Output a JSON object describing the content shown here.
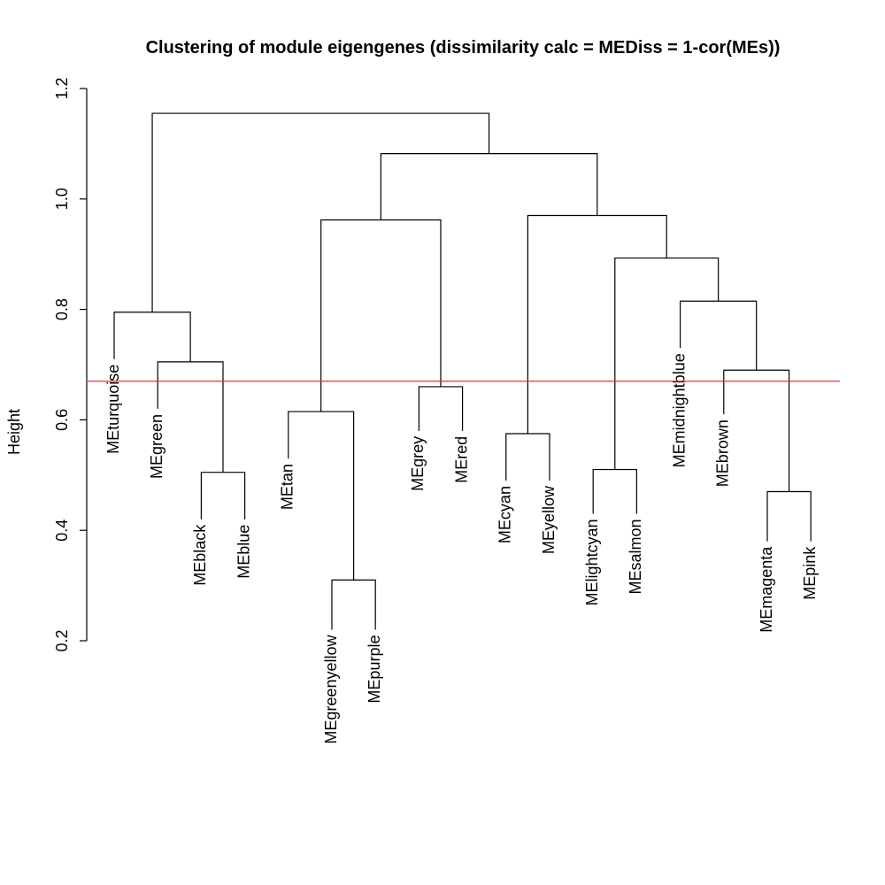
{
  "chart_data": {
    "type": "dendrogram",
    "title": "Clustering of module eigengenes (dissimilarity calc = MEDiss = 1-cor(MEs))",
    "ylabel": "Height",
    "xlabel": "",
    "ylim": [
      0.2,
      1.2
    ],
    "yticks": [
      0.2,
      0.4,
      0.6,
      0.8,
      1.0,
      1.2
    ],
    "ytick_labels": [
      "0.2",
      "0.4",
      "0.6",
      "0.8",
      "1.0",
      "1.2"
    ],
    "cut_height": 0.67,
    "cut_color": "#e8302c",
    "leaves": [
      {
        "id": "turquoise",
        "label": "MEturquoise",
        "height": 0.71
      },
      {
        "id": "green",
        "label": "MEgreen",
        "height": 0.62
      },
      {
        "id": "black",
        "label": "MEblack",
        "height": 0.42
      },
      {
        "id": "blue",
        "label": "MEblue",
        "height": 0.42
      },
      {
        "id": "tan",
        "label": "MEtan",
        "height": 0.53
      },
      {
        "id": "greenyellow",
        "label": "MEgreenyellow",
        "height": 0.22
      },
      {
        "id": "purple",
        "label": "MEpurple",
        "height": 0.22
      },
      {
        "id": "grey",
        "label": "MEgrey",
        "height": 0.58
      },
      {
        "id": "red",
        "label": "MEred",
        "height": 0.58
      },
      {
        "id": "cyan",
        "label": "MEcyan",
        "height": 0.49
      },
      {
        "id": "yellow",
        "label": "MEyellow",
        "height": 0.49
      },
      {
        "id": "lightcyan",
        "label": "MElightcyan",
        "height": 0.43
      },
      {
        "id": "salmon",
        "label": "MEsalmon",
        "height": 0.43
      },
      {
        "id": "midnightblue",
        "label": "MEmidnightblue",
        "height": 0.73
      },
      {
        "id": "brown",
        "label": "MEbrown",
        "height": 0.61
      },
      {
        "id": "magenta",
        "label": "MEmagenta",
        "height": 0.38
      },
      {
        "id": "pink",
        "label": "MEpink",
        "height": 0.38
      }
    ],
    "merges": [
      {
        "id": "m1",
        "left": "greenyellow",
        "right": "purple",
        "height": 0.31
      },
      {
        "id": "m2",
        "left": "magenta",
        "right": "pink",
        "height": 0.47
      },
      {
        "id": "m3",
        "left": "black",
        "right": "blue",
        "height": 0.505
      },
      {
        "id": "m4",
        "left": "lightcyan",
        "right": "salmon",
        "height": 0.51
      },
      {
        "id": "m5",
        "left": "cyan",
        "right": "yellow",
        "height": 0.575
      },
      {
        "id": "m6",
        "left": "tan",
        "right": "m1",
        "height": 0.615
      },
      {
        "id": "m7",
        "left": "grey",
        "right": "red",
        "height": 0.66
      },
      {
        "id": "m8",
        "left": "brown",
        "right": "m2",
        "height": 0.69
      },
      {
        "id": "m9",
        "left": "green",
        "right": "m3",
        "height": 0.705
      },
      {
        "id": "m10",
        "left": "turquoise",
        "right": "m9",
        "height": 0.795
      },
      {
        "id": "m11",
        "left": "midnightblue",
        "right": "m8",
        "height": 0.815
      },
      {
        "id": "m12",
        "left": "m4",
        "right": "m11",
        "height": 0.893
      },
      {
        "id": "m13",
        "left": "m6",
        "right": "m7",
        "height": 0.962
      },
      {
        "id": "m14",
        "left": "m5",
        "right": "m12",
        "height": 0.97
      },
      {
        "id": "m15",
        "left": "m13",
        "right": "m14",
        "height": 1.082
      },
      {
        "id": "m16",
        "left": "m10",
        "right": "m15",
        "height": 1.155
      }
    ]
  }
}
